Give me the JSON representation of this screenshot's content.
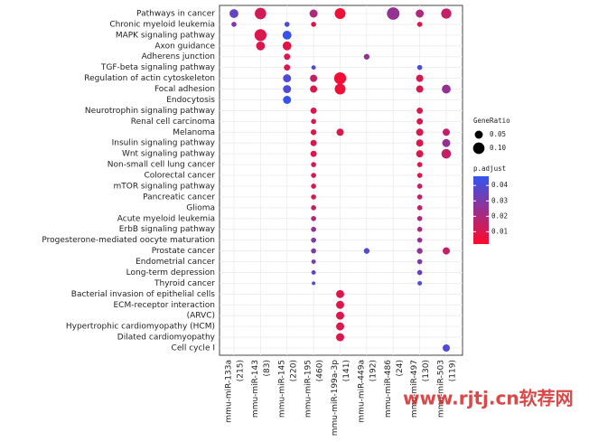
{
  "chart_data": {
    "type": "dot",
    "pathways": [
      "Pathways in cancer",
      "Chronic myeloid leukemia",
      "MAPK signaling pathway",
      "Axon guidance",
      "Adherens junction",
      "TGF-beta signaling pathway",
      "Regulation of actin cytoskeleton",
      "Focal adhesion",
      "Endocytosis",
      "Neurotrophin signaling pathway",
      "Renal cell carcinoma",
      "Melanoma",
      "Insulin signaling pathway",
      "Wnt signaling pathway",
      "Non-small cell lung cancer",
      "Colorectal cancer",
      "mTOR signaling pathway",
      "Pancreatic cancer",
      "Glioma",
      "Acute myeloid leukemia",
      "ErbB signaling pathway",
      "Progesterone-mediated oocyte maturation",
      "Prostate cancer",
      "Endometrial cancer",
      "Long-term depression",
      "Thyroid cancer",
      "Bacterial invasion of epithelial cells",
      "ECM-receptor interaction",
      "(ARVC)",
      "Hypertrophic cardiomyopathy (HCM)",
      "Dilated cardiomyopathy",
      "Cell cycle I"
    ],
    "clusters": [
      {
        "name": "mmu-miR-133a",
        "count": "(215)",
        "points": [
          {
            "pathway": "Pathways in cancer",
            "gene_ratio": 0.06,
            "p_adjust": 0.035
          },
          {
            "pathway": "Chronic myeloid leukemia",
            "gene_ratio": 0.02,
            "p_adjust": 0.03
          }
        ]
      },
      {
        "name": "mmu-miR-143",
        "count": "(83)",
        "points": [
          {
            "pathway": "Pathways in cancer",
            "gene_ratio": 0.1,
            "p_adjust": 0.012
          },
          {
            "pathway": "MAPK signaling pathway",
            "gene_ratio": 0.11,
            "p_adjust": 0.01
          },
          {
            "pathway": "Axon guidance",
            "gene_ratio": 0.06,
            "p_adjust": 0.01
          }
        ]
      },
      {
        "name": "mmu-miR-145",
        "count": "(220)",
        "points": [
          {
            "pathway": "Chronic myeloid leukemia",
            "gene_ratio": 0.02,
            "p_adjust": 0.04
          },
          {
            "pathway": "MAPK signaling pathway",
            "gene_ratio": 0.06,
            "p_adjust": 0.045
          },
          {
            "pathway": "Axon guidance",
            "gene_ratio": 0.06,
            "p_adjust": 0.008
          },
          {
            "pathway": "Adherens junction",
            "gene_ratio": 0.03,
            "p_adjust": 0.01
          },
          {
            "pathway": "TGF-beta signaling pathway",
            "gene_ratio": 0.03,
            "p_adjust": 0.01
          },
          {
            "pathway": "Regulation of actin cytoskeleton",
            "gene_ratio": 0.05,
            "p_adjust": 0.04
          },
          {
            "pathway": "Focal adhesion",
            "gene_ratio": 0.05,
            "p_adjust": 0.04
          },
          {
            "pathway": "Endocytosis",
            "gene_ratio": 0.05,
            "p_adjust": 0.045
          }
        ]
      },
      {
        "name": "mmu-miR-195",
        "count": "(460)",
        "points": [
          {
            "pathway": "Pathways in cancer",
            "gene_ratio": 0.05,
            "p_adjust": 0.02
          },
          {
            "pathway": "Chronic myeloid leukemia",
            "gene_ratio": 0.02,
            "p_adjust": 0.01
          },
          {
            "pathway": "TGF-beta signaling pathway",
            "gene_ratio": 0.015,
            "p_adjust": 0.04
          },
          {
            "pathway": "Regulation of actin cytoskeleton",
            "gene_ratio": 0.04,
            "p_adjust": 0.015
          },
          {
            "pathway": "Focal adhesion",
            "gene_ratio": 0.04,
            "p_adjust": 0.01
          },
          {
            "pathway": "Neurotrophin signaling pathway",
            "gene_ratio": 0.03,
            "p_adjust": 0.01
          },
          {
            "pathway": "Renal cell carcinoma",
            "gene_ratio": 0.02,
            "p_adjust": 0.01
          },
          {
            "pathway": "Melanoma",
            "gene_ratio": 0.025,
            "p_adjust": 0.01
          },
          {
            "pathway": "Insulin signaling pathway",
            "gene_ratio": 0.03,
            "p_adjust": 0.01
          },
          {
            "pathway": "Wnt signaling pathway",
            "gene_ratio": 0.03,
            "p_adjust": 0.01
          },
          {
            "pathway": "Non-small cell lung cancer",
            "gene_ratio": 0.02,
            "p_adjust": 0.01
          },
          {
            "pathway": "Colorectal cancer",
            "gene_ratio": 0.02,
            "p_adjust": 0.01
          },
          {
            "pathway": "mTOR signaling pathway",
            "gene_ratio": 0.02,
            "p_adjust": 0.01
          },
          {
            "pathway": "Pancreatic cancer",
            "gene_ratio": 0.02,
            "p_adjust": 0.01
          },
          {
            "pathway": "Glioma",
            "gene_ratio": 0.02,
            "p_adjust": 0.015
          },
          {
            "pathway": "Acute myeloid leukemia",
            "gene_ratio": 0.02,
            "p_adjust": 0.02
          },
          {
            "pathway": "ErbB signaling pathway",
            "gene_ratio": 0.02,
            "p_adjust": 0.025
          },
          {
            "pathway": "Progesterone-mediated oocyte maturation",
            "gene_ratio": 0.02,
            "p_adjust": 0.03
          },
          {
            "pathway": "Prostate cancer",
            "gene_ratio": 0.02,
            "p_adjust": 0.03
          },
          {
            "pathway": "Endometrial cancer",
            "gene_ratio": 0.015,
            "p_adjust": 0.03
          },
          {
            "pathway": "Long-term depression",
            "gene_ratio": 0.015,
            "p_adjust": 0.035
          },
          {
            "pathway": "Thyroid cancer",
            "gene_ratio": 0.01,
            "p_adjust": 0.04
          }
        ]
      },
      {
        "name": "mmu-miR-199a-3p",
        "count": "(141)",
        "points": [
          {
            "pathway": "Pathways in cancer",
            "gene_ratio": 0.09,
            "p_adjust": 0.005
          },
          {
            "pathway": "Regulation of actin cytoskeleton",
            "gene_ratio": 0.11,
            "p_adjust": 0.005
          },
          {
            "pathway": "Focal adhesion",
            "gene_ratio": 0.09,
            "p_adjust": 0.005
          },
          {
            "pathway": "Melanoma",
            "gene_ratio": 0.04,
            "p_adjust": 0.01
          },
          {
            "pathway": "Bacterial invasion of epithelial cells",
            "gene_ratio": 0.05,
            "p_adjust": 0.01
          },
          {
            "pathway": "ECM-receptor interaction",
            "gene_ratio": 0.05,
            "p_adjust": 0.01
          },
          {
            "pathway": "(ARVC)",
            "gene_ratio": 0.05,
            "p_adjust": 0.01
          },
          {
            "pathway": "Hypertrophic cardiomyopathy (HCM)",
            "gene_ratio": 0.05,
            "p_adjust": 0.01
          },
          {
            "pathway": "Dilated cardiomyopathy",
            "gene_ratio": 0.05,
            "p_adjust": 0.01
          }
        ]
      },
      {
        "name": "mmu-miR-449a",
        "count": "(192)",
        "points": [
          {
            "pathway": "Adherens junction",
            "gene_ratio": 0.025,
            "p_adjust": 0.025
          },
          {
            "pathway": "Prostate cancer",
            "gene_ratio": 0.025,
            "p_adjust": 0.04
          }
        ]
      },
      {
        "name": "mmu-miR-486",
        "count": "(24)",
        "points": [
          {
            "pathway": "Pathways in cancer",
            "gene_ratio": 0.12,
            "p_adjust": 0.025
          }
        ]
      },
      {
        "name": "mmu-miR-497",
        "count": "(130)",
        "points": [
          {
            "pathway": "Pathways in cancer",
            "gene_ratio": 0.05,
            "p_adjust": 0.02
          },
          {
            "pathway": "Chronic myeloid leukemia",
            "gene_ratio": 0.02,
            "p_adjust": 0.01
          },
          {
            "pathway": "TGF-beta signaling pathway",
            "gene_ratio": 0.02,
            "p_adjust": 0.04
          },
          {
            "pathway": "Regulation of actin cytoskeleton",
            "gene_ratio": 0.04,
            "p_adjust": 0.01
          },
          {
            "pathway": "Focal adhesion",
            "gene_ratio": 0.04,
            "p_adjust": 0.01
          },
          {
            "pathway": "Neurotrophin signaling pathway",
            "gene_ratio": 0.03,
            "p_adjust": 0.01
          },
          {
            "pathway": "Renal cell carcinoma",
            "gene_ratio": 0.03,
            "p_adjust": 0.01
          },
          {
            "pathway": "Melanoma",
            "gene_ratio": 0.04,
            "p_adjust": 0.01
          },
          {
            "pathway": "Insulin signaling pathway",
            "gene_ratio": 0.04,
            "p_adjust": 0.01
          },
          {
            "pathway": "Wnt signaling pathway",
            "gene_ratio": 0.04,
            "p_adjust": 0.01
          },
          {
            "pathway": "Non-small cell lung cancer",
            "gene_ratio": 0.02,
            "p_adjust": 0.01
          },
          {
            "pathway": "Colorectal cancer",
            "gene_ratio": 0.02,
            "p_adjust": 0.01
          },
          {
            "pathway": "mTOR signaling pathway",
            "gene_ratio": 0.02,
            "p_adjust": 0.015
          },
          {
            "pathway": "Pancreatic cancer",
            "gene_ratio": 0.02,
            "p_adjust": 0.015
          },
          {
            "pathway": "Glioma",
            "gene_ratio": 0.02,
            "p_adjust": 0.015
          },
          {
            "pathway": "Acute myeloid leukemia",
            "gene_ratio": 0.02,
            "p_adjust": 0.02
          },
          {
            "pathway": "ErbB signaling pathway",
            "gene_ratio": 0.02,
            "p_adjust": 0.02
          },
          {
            "pathway": "Progesterone-mediated oocyte maturation",
            "gene_ratio": 0.02,
            "p_adjust": 0.025
          },
          {
            "pathway": "Prostate cancer",
            "gene_ratio": 0.025,
            "p_adjust": 0.025
          },
          {
            "pathway": "Endometrial cancer",
            "gene_ratio": 0.02,
            "p_adjust": 0.03
          },
          {
            "pathway": "Long-term depression",
            "gene_ratio": 0.02,
            "p_adjust": 0.035
          },
          {
            "pathway": "Thyroid cancer",
            "gene_ratio": 0.015,
            "p_adjust": 0.04
          }
        ]
      },
      {
        "name": "mmu-miR-503",
        "count": "(119)",
        "points": [
          {
            "pathway": "Pathways in cancer",
            "gene_ratio": 0.08,
            "p_adjust": 0.015
          },
          {
            "pathway": "Focal adhesion",
            "gene_ratio": 0.06,
            "p_adjust": 0.025
          },
          {
            "pathway": "Melanoma",
            "gene_ratio": 0.04,
            "p_adjust": 0.015
          },
          {
            "pathway": "Insulin signaling pathway",
            "gene_ratio": 0.05,
            "p_adjust": 0.025
          },
          {
            "pathway": "Wnt signaling pathway",
            "gene_ratio": 0.07,
            "p_adjust": 0.015
          },
          {
            "pathway": "Prostate cancer",
            "gene_ratio": 0.04,
            "p_adjust": 0.015
          },
          {
            "pathway": "Cell cycle I",
            "gene_ratio": 0.04,
            "p_adjust": 0.04
          }
        ]
      }
    ],
    "size_legend": {
      "title": "GeneRatio",
      "ticks": [
        0.05,
        {
          "value": 0.1,
          "label": "0.10"
        }
      ]
    },
    "color_legend": {
      "title": "p.adjust",
      "ticks": [
        0.04,
        0.03,
        0.02,
        0.01
      ],
      "clim": [
        0.002,
        0.046
      ],
      "low_color": "#ff0a2a",
      "high_color": "#3355f0"
    },
    "grid": true,
    "watermark": "www.rjtj.cn软荐网"
  }
}
